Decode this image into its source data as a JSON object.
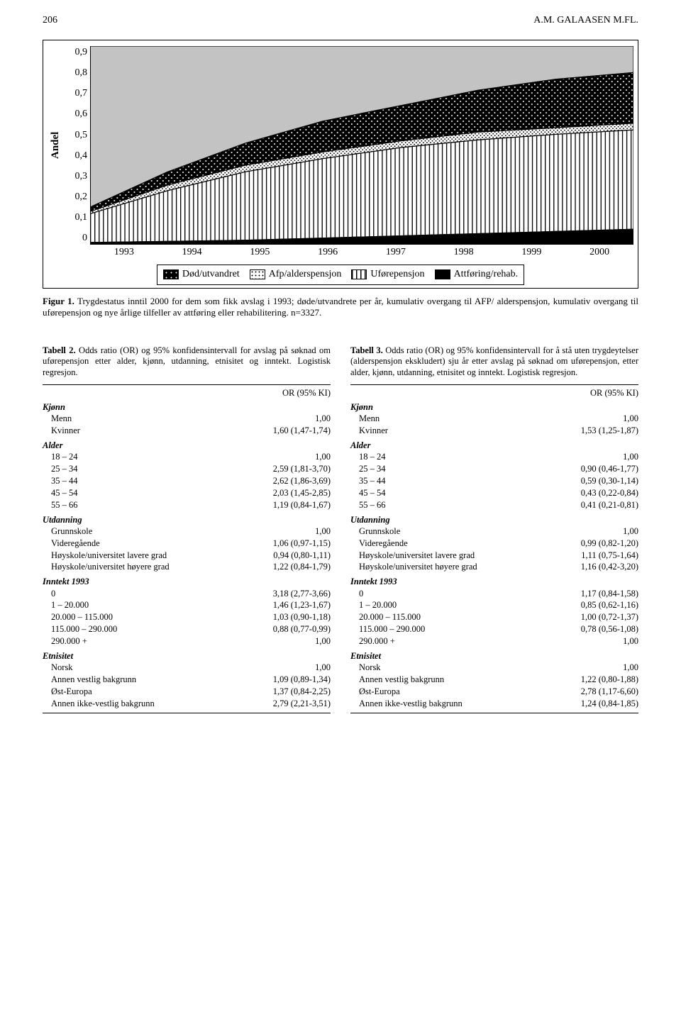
{
  "header": {
    "page_number": "206",
    "running_head": "A.M. GALAASEN M.FL."
  },
  "chart": {
    "type": "stacked-area",
    "y_axis_title": "Andel",
    "x_categories": [
      "1993",
      "1994",
      "1995",
      "1996",
      "1997",
      "1998",
      "1999",
      "2000"
    ],
    "y_ticks": [
      "0,9",
      "0,8",
      "0,7",
      "0,6",
      "0,5",
      "0,4",
      "0,3",
      "0,2",
      "0,1",
      "0"
    ],
    "ylim": [
      0,
      0.9
    ],
    "legend": [
      {
        "id": "dod",
        "label": "Død/utvandret"
      },
      {
        "id": "afp",
        "label": "Afp/alderspensjon"
      },
      {
        "id": "ufore",
        "label": "Uførepensjon"
      },
      {
        "id": "attfor",
        "label": "Attføring/rehab."
      }
    ],
    "series_notes": "Four stacked areas; top grey band is 'remaining', total area height shows cumulative andel leaving base state.",
    "cum_top": [
      0.17,
      0.33,
      0.46,
      0.56,
      0.63,
      0.7,
      0.75,
      0.78
    ],
    "boundary_dod_afp": [
      0.15,
      0.27,
      0.36,
      0.42,
      0.47,
      0.51,
      0.53,
      0.55
    ],
    "boundary_afp_ufore": [
      0.14,
      0.245,
      0.33,
      0.39,
      0.44,
      0.475,
      0.5,
      0.52
    ],
    "boundary_ufore_att": [
      0.01,
      0.015,
      0.02,
      0.03,
      0.04,
      0.05,
      0.06,
      0.07
    ],
    "pattern_ids": {
      "dod": "pat-dots",
      "afp": "pat-dots-sm",
      "ufore": "pat-stripes",
      "attfor": "solid"
    },
    "colors": {
      "axis": "#000000",
      "grid": "none",
      "chart_bg": "#ffffff",
      "grey_top": "#c3c3c3",
      "solid_black": "#000000",
      "border": "#000000"
    },
    "plot_aspect": "wide",
    "font_size_axis": 14
  },
  "figure_caption": {
    "label": "Figur 1.",
    "text": "Trygdestatus inntil 2000 for dem som fikk avslag i 1993; døde/utvandrete per år, kumulativ overgang til AFP/ alderspensjon, kumulativ overgang til uførepensjon og nye årlige tilfeller av attføring eller rehabilitering. n=3327."
  },
  "table2": {
    "label": "Tabell 2.",
    "caption": "Odds ratio (OR) og 95% konfidensintervall for avslag på søknad om uførepensjon etter alder, kjønn, utdanning, etnisitet og inntekt. Logistisk regresjon.",
    "or_head": "OR (95% KI)",
    "groups": [
      {
        "title": "Kjønn",
        "rows": [
          {
            "lab": "Menn",
            "val": "1,00"
          },
          {
            "lab": "Kvinner",
            "val": "1,60 (1,47-1,74)"
          }
        ]
      },
      {
        "title": "Alder",
        "rows": [
          {
            "lab": "18 – 24",
            "val": "1,00"
          },
          {
            "lab": "25 – 34",
            "val": "2,59 (1,81-3,70)"
          },
          {
            "lab": "35 – 44",
            "val": "2,62 (1,86-3,69)"
          },
          {
            "lab": "45 – 54",
            "val": "2,03 (1,45-2,85)"
          },
          {
            "lab": "55 – 66",
            "val": "1,19 (0,84-1,67)"
          }
        ]
      },
      {
        "title": "Utdanning",
        "rows": [
          {
            "lab": "Grunnskole",
            "val": "1,00"
          },
          {
            "lab": "Videregående",
            "val": "1,06 (0,97-1,15)"
          },
          {
            "lab": "Høyskole/universitet lavere grad",
            "val": "0,94 (0,80-1,11)"
          },
          {
            "lab": "Høyskole/universitet høyere grad",
            "val": "1,22 (0,84-1,79)"
          }
        ]
      },
      {
        "title": "Inntekt 1993",
        "rows": [
          {
            "lab": "0",
            "val": "3,18 (2,77-3,66)"
          },
          {
            "lab": "1 – 20.000",
            "val": "1,46 (1,23-1,67)"
          },
          {
            "lab": "20.000 – 115.000",
            "val": "1,03 (0,90-1,18)"
          },
          {
            "lab": "115.000 – 290.000",
            "val": "0,88 (0,77-0,99)"
          },
          {
            "lab": "290.000 +",
            "val": "1,00"
          }
        ]
      },
      {
        "title": "Etnisitet",
        "rows": [
          {
            "lab": "Norsk",
            "val": "1,00"
          },
          {
            "lab": "Annen vestlig bakgrunn",
            "val": "1,09 (0,89-1,34)"
          },
          {
            "lab": "Øst-Europa",
            "val": "1,37 (0,84-2,25)"
          },
          {
            "lab": "Annen ikke-vestlig bakgrunn",
            "val": "2,79 (2,21-3,51)"
          }
        ]
      }
    ]
  },
  "table3": {
    "label": "Tabell 3.",
    "caption": "Odds ratio (OR) og 95% konfidensintervall for å stå uten trygdeytelser (alderspensjon ekskludert) sju år etter avslag på søknad om uførepensjon, etter alder, kjønn, utdanning, etnisitet og inntekt. Logistisk regresjon.",
    "or_head": "OR (95% KI)",
    "groups": [
      {
        "title": "Kjønn",
        "rows": [
          {
            "lab": "Menn",
            "val": "1,00"
          },
          {
            "lab": "Kvinner",
            "val": "1,53 (1,25-1,87)"
          }
        ]
      },
      {
        "title": "Alder",
        "rows": [
          {
            "lab": "18 – 24",
            "val": "1,00"
          },
          {
            "lab": "25 – 34",
            "val": "0,90 (0,46-1,77)"
          },
          {
            "lab": "35 – 44",
            "val": "0,59 (0,30-1,14)"
          },
          {
            "lab": "45 – 54",
            "val": "0,43 (0,22-0,84)"
          },
          {
            "lab": "55 – 66",
            "val": "0,41 (0,21-0,81)"
          }
        ]
      },
      {
        "title": "Utdanning",
        "rows": [
          {
            "lab": "Grunnskole",
            "val": "1,00"
          },
          {
            "lab": "Videregående",
            "val": "0,99 (0,82-1,20)"
          },
          {
            "lab": "Høyskole/universitet lavere grad",
            "val": "1,11 (0,75-1,64)"
          },
          {
            "lab": "Høyskole/universitet høyere grad",
            "val": "1,16 (0,42-3,20)"
          }
        ]
      },
      {
        "title": "Inntekt 1993",
        "rows": [
          {
            "lab": "0",
            "val": "1,17 (0,84-1,58)"
          },
          {
            "lab": "1 – 20.000",
            "val": "0,85 (0,62-1,16)"
          },
          {
            "lab": "20.000 – 115.000",
            "val": "1,00 (0,72-1,37)"
          },
          {
            "lab": "115.000 – 290.000",
            "val": "0,78 (0,56-1,08)"
          },
          {
            "lab": "290.000 +",
            "val": "1,00"
          }
        ]
      },
      {
        "title": "Etnisitet",
        "rows": [
          {
            "lab": "Norsk",
            "val": "1,00"
          },
          {
            "lab": "Annen vestlig bakgrunn",
            "val": "1,22 (0,80-1,88)"
          },
          {
            "lab": "Øst-Europa",
            "val": "2,78 (1,17-6,60)"
          },
          {
            "lab": "Annen ikke-vestlig bakgrunn",
            "val": "1,24 (0,84-1,85)"
          }
        ]
      }
    ]
  }
}
